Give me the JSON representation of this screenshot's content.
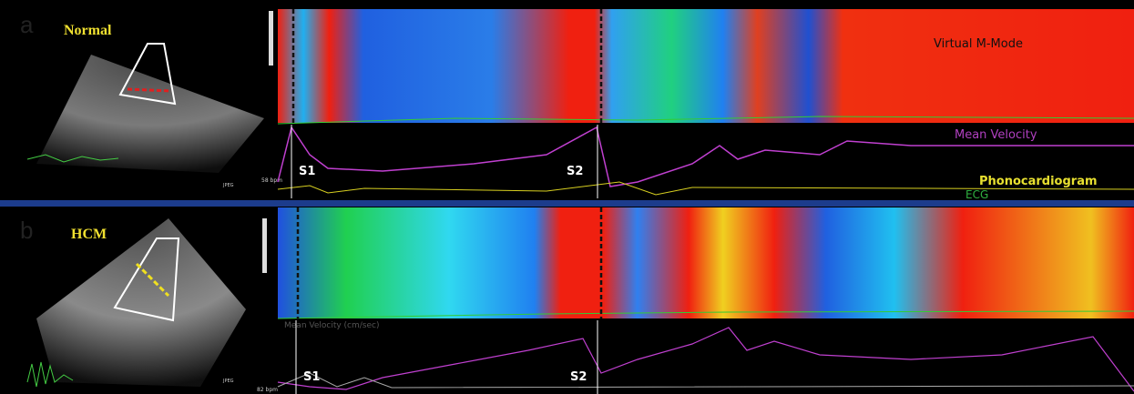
{
  "panels": [
    {
      "label": "a",
      "condition": "Normal",
      "mmode_title": "Virtual M-Mode",
      "trace_labels": [
        "Mean Velocity",
        "Phonocardiogram",
        "ECG"
      ],
      "events": [
        "S1",
        "S2"
      ],
      "heart_rate": "58 bpm",
      "image_tag": "JPEG"
    },
    {
      "label": "b",
      "condition": "HCM",
      "trace_title": "Mean Velocity (cm/sec)",
      "events": [
        "S1",
        "S2"
      ],
      "heart_rate": "82 bpm",
      "image_tag": "JPEG"
    }
  ]
}
